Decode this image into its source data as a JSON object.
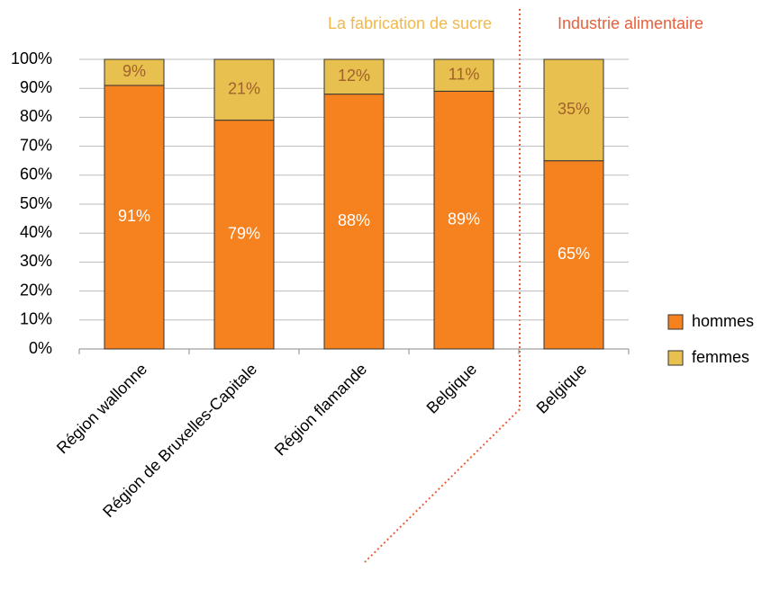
{
  "chart_data": {
    "type": "stacked_bar",
    "annotations": [
      "La fabrication de sucre",
      "Industrie alimentaire"
    ],
    "categories": [
      "Région wallonne",
      "Région de Bruxelles-Capitale",
      "Région flamande",
      "Belgique",
      "Belgique"
    ],
    "series": [
      {
        "name": "hommes",
        "color": "#f5821f",
        "values": [
          91,
          79,
          88,
          89,
          65
        ],
        "value_labels": [
          "91%",
          "79%",
          "88%",
          "89%",
          "65%"
        ]
      },
      {
        "name": "femmes",
        "color": "#e8c04f",
        "values": [
          9,
          21,
          12,
          11,
          35
        ],
        "value_labels": [
          "9%",
          "21%",
          "12%",
          "11%",
          "35%"
        ]
      }
    ],
    "ylim": [
      0,
      100
    ],
    "yticks": [
      {
        "value": 0,
        "label": "0%"
      },
      {
        "value": 10,
        "label": "10%"
      },
      {
        "value": 20,
        "label": "20%"
      },
      {
        "value": 30,
        "label": "30%"
      },
      {
        "value": 40,
        "label": "40%"
      },
      {
        "value": 50,
        "label": "50%"
      },
      {
        "value": 60,
        "label": "60%"
      },
      {
        "value": 70,
        "label": "70%"
      },
      {
        "value": 80,
        "label": "80%"
      },
      {
        "value": 90,
        "label": "90%"
      },
      {
        "value": 100,
        "label": "100%"
      }
    ],
    "grid": true,
    "legend": "right"
  }
}
